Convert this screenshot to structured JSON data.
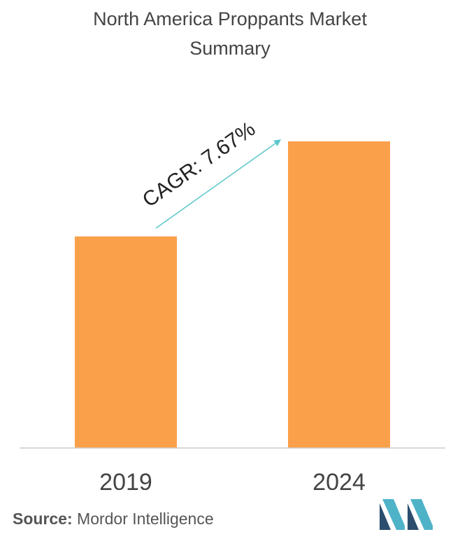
{
  "title_line1": "North America Proppants Market",
  "title_line2": "Summary",
  "chart_data": {
    "type": "bar",
    "title": "North America Proppants Market Summary",
    "categories": [
      "2019",
      "2024"
    ],
    "values": [
      0.69,
      1.0
    ],
    "ylim": [
      0,
      1.05
    ],
    "xlabel": "",
    "ylabel": "",
    "grid": false,
    "annotation": "CAGR: 7.67%",
    "colors": {
      "bar": "#FBA04A",
      "arrow": "#5CC7CB",
      "axis": "#CCCCCC"
    }
  },
  "source": {
    "label": "Source:",
    "text": "Mordor Intelligence"
  },
  "logo": {
    "icon": "mordor-intelligence-logo",
    "colors": [
      "#2B4E6E",
      "#4FB3C8"
    ]
  }
}
